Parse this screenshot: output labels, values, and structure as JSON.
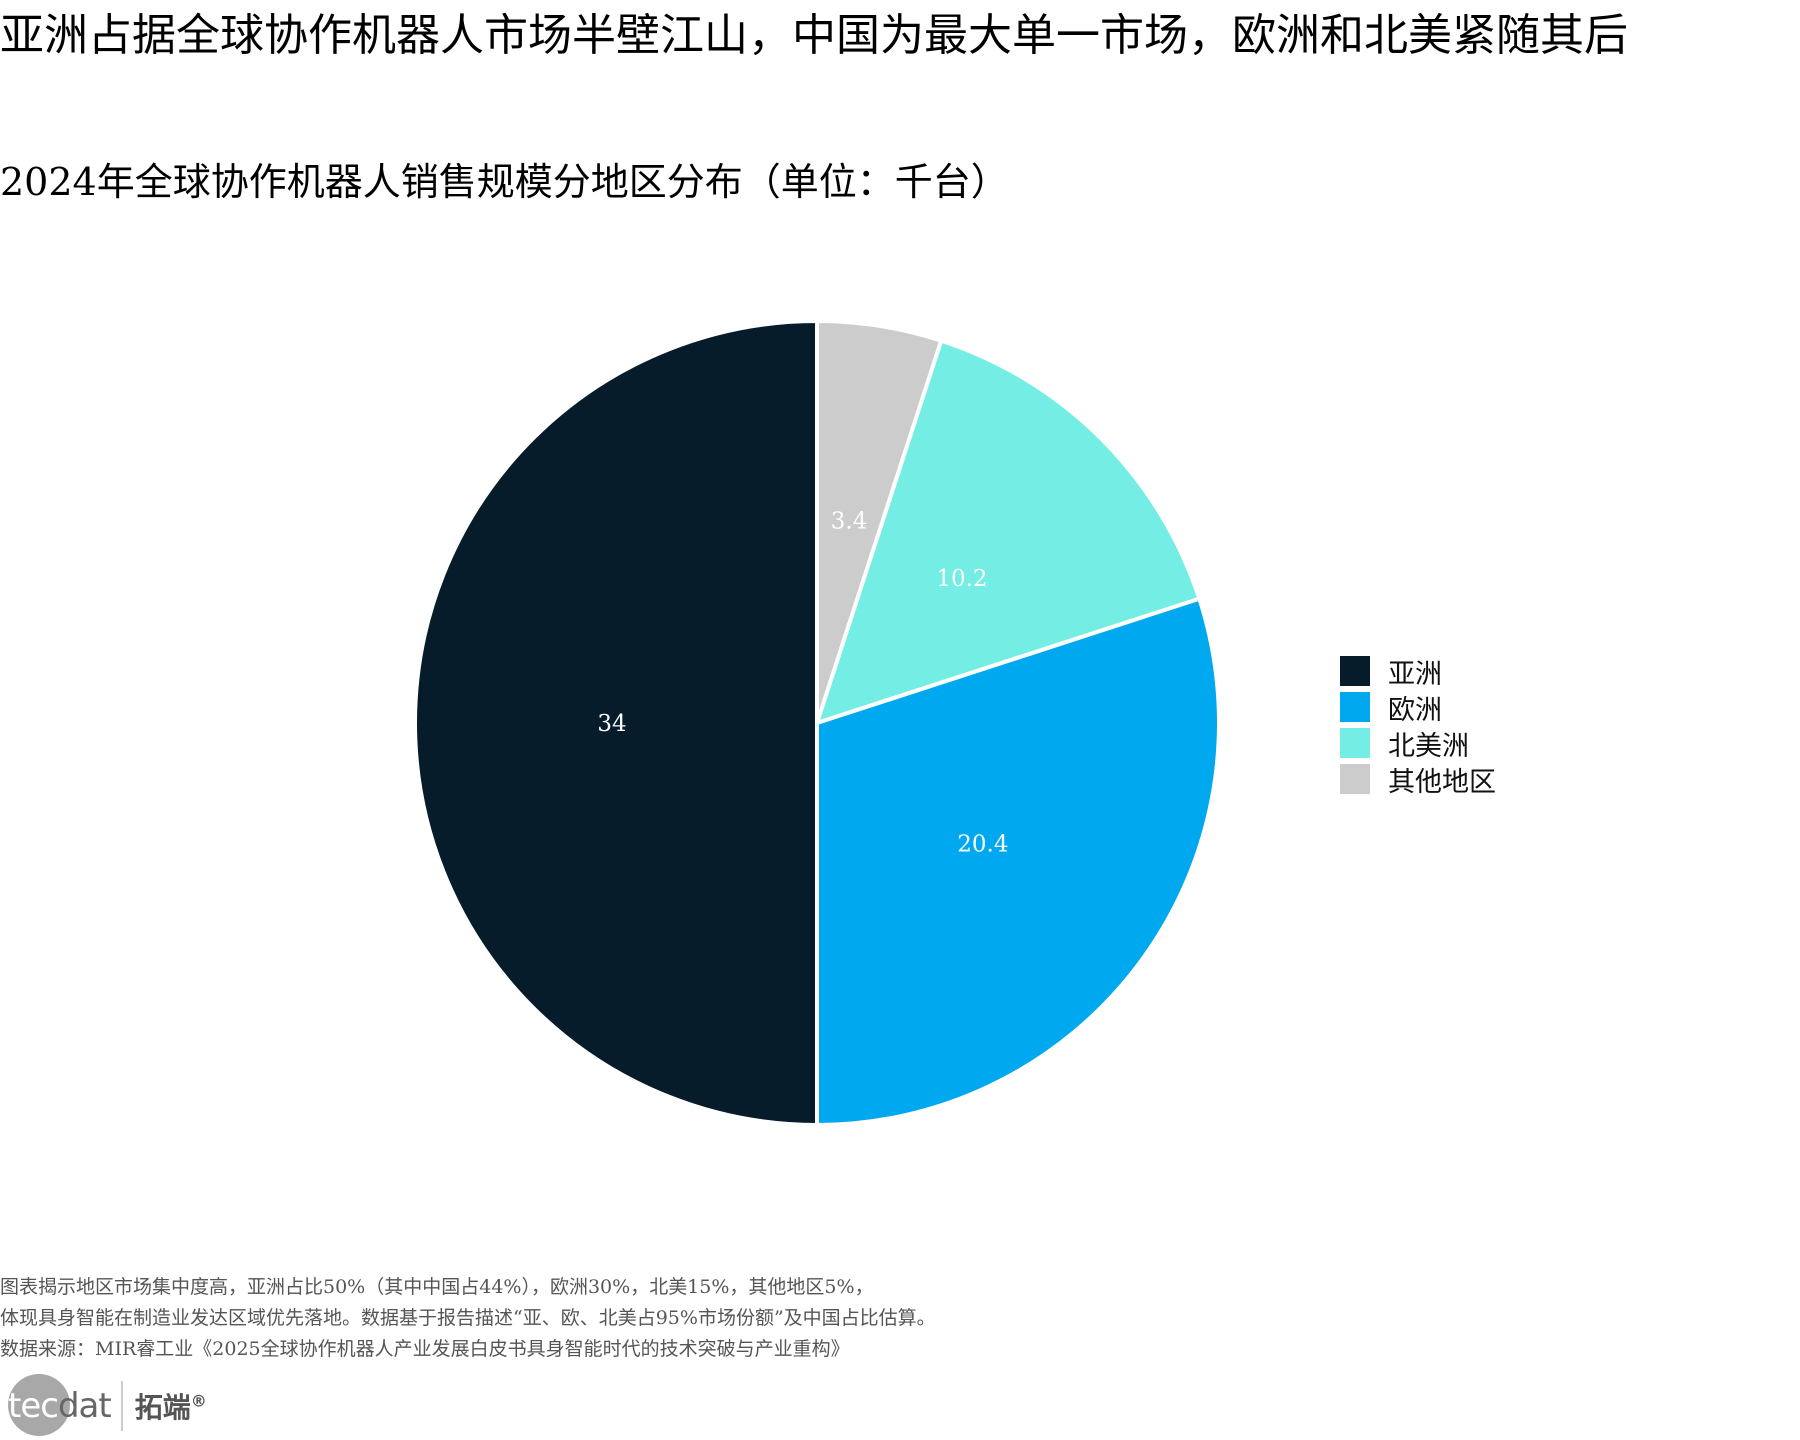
{
  "header": {
    "title": "亚洲占据全球协作机器人市场半壁江山，中国为最大单一市场，欧洲和北美紧随其后",
    "subtitle": "2024年全球协作机器人销售规模分地区分布（单位：千台）"
  },
  "chart_data": {
    "type": "pie",
    "title": "2024年全球协作机器人销售规模分地区分布（单位：千台）",
    "unit": "千台",
    "categories": [
      "亚洲",
      "欧洲",
      "北美洲",
      "其他地区"
    ],
    "values": [
      34,
      20.4,
      10.2,
      3.4
    ],
    "labels": [
      "34",
      "20.4",
      "10.2",
      "3.4"
    ],
    "colors": [
      "#061c2b",
      "#00a8f0",
      "#74eee4",
      "#cccccc"
    ],
    "start_angle": "12 o'clock",
    "direction": "counterclockwise from top for 亚洲; slice order clockwise from top: 其他地区, 北美洲, 欧洲, 亚洲",
    "legend_position": "right"
  },
  "legend": {
    "items": [
      {
        "label": "亚洲",
        "color": "#061c2b"
      },
      {
        "label": "欧洲",
        "color": "#00a8f0"
      },
      {
        "label": "北美洲",
        "color": "#74eee4"
      },
      {
        "label": "其他地区",
        "color": "#cccccc"
      }
    ]
  },
  "footer": {
    "notes": [
      "图表揭示地区市场集中度高，亚洲占比50%（其中中国占44%），欧洲30%，北美15%，其他地区5%，",
      "体现具身智能在制造业发达区域优先落地。数据基于报告描述“亚、欧、北美占95%市场份额”及中国占比估算。",
      "数据来源：MIR睿工业《2025全球协作机器人产业发展白皮书具身智能时代的技术突破与产业重构》"
    ],
    "logo": {
      "text_light": "tec",
      "text_dark": "dat",
      "cn": "拓端",
      "mark": "®"
    }
  }
}
